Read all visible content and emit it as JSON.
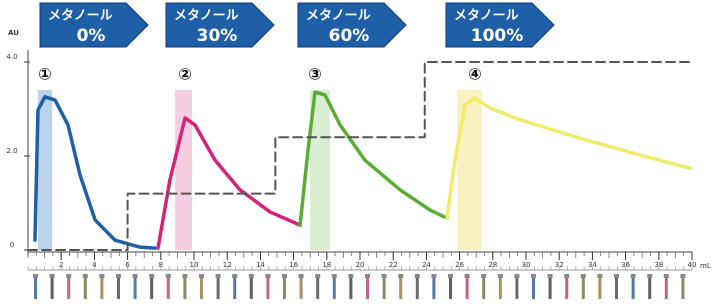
{
  "chart_data": {
    "type": "line",
    "y_label": "AU",
    "x_label": "mL",
    "xlim": [
      0,
      40
    ],
    "ylim": [
      0,
      4
    ],
    "y2lim": [
      0,
      100
    ],
    "xticks": [
      2,
      4,
      6,
      8,
      10,
      12,
      14,
      16,
      18,
      20,
      22,
      24,
      26,
      28,
      30,
      32,
      34,
      36,
      38,
      40
    ],
    "yticks": [
      0,
      {
        "value": 2,
        "label": "2.0"
      },
      {
        "value": 4,
        "label": "4.0"
      }
    ],
    "series": [
      {
        "name": "①",
        "color": "#1f5fa8",
        "x": [
          0.42,
          0.6,
          1.02,
          1.63,
          2.41,
          3.13,
          4.04,
          5.24,
          6.75,
          7.65
        ],
        "values": [
          0.21,
          2.98,
          3.26,
          3.19,
          2.66,
          1.6,
          0.64,
          0.21,
          0.06,
          0.04
        ],
        "band": [
          0.6,
          1.45
        ],
        "band_color": "#a9c8e6"
      },
      {
        "name": "②",
        "color": "#d4237a",
        "x": [
          7.83,
          8.55,
          9.46,
          10.06,
          11.27,
          12.77,
          14.58,
          16.39
        ],
        "values": [
          0.04,
          1.49,
          2.81,
          2.66,
          1.91,
          1.28,
          0.81,
          0.53
        ],
        "band": [
          8.86,
          9.88
        ],
        "band_color": "#f2c3d9"
      },
      {
        "name": "③",
        "color": "#5aad32",
        "x": [
          16.39,
          16.87,
          17.29,
          17.89,
          18.8,
          20.3,
          22.41,
          24.22,
          25.24
        ],
        "values": [
          0.53,
          2.13,
          3.36,
          3.3,
          2.66,
          1.91,
          1.28,
          0.85,
          0.68
        ],
        "band": [
          16.99,
          18.19
        ],
        "band_color": "#cfe8c4"
      },
      {
        "name": "④",
        "color": "#f2ea6a",
        "x": [
          25.24,
          25.72,
          26.33,
          26.93,
          27.83,
          29.64,
          33.25,
          36.87,
          39.88
        ],
        "values": [
          0.68,
          1.91,
          3.09,
          3.23,
          3.02,
          2.77,
          2.38,
          2.02,
          1.74
        ],
        "band": [
          25.84,
          27.35
        ],
        "band_color": "#f7efb0"
      },
      {
        "name": "メタノール",
        "color": "#555555",
        "axis": "y2",
        "dashed": true,
        "x": [
          0,
          6,
          6,
          14.9,
          14.9,
          23.9,
          23.9,
          40
        ],
        "values": [
          0,
          0,
          30,
          30,
          60,
          60,
          100,
          100
        ]
      }
    ],
    "steps": [
      {
        "label": "メタノール",
        "percent": "0%"
      },
      {
        "label": "メタノール",
        "percent": "30%"
      },
      {
        "label": "メタノール",
        "percent": "60%"
      },
      {
        "label": "メタノール",
        "percent": "100%"
      }
    ]
  }
}
